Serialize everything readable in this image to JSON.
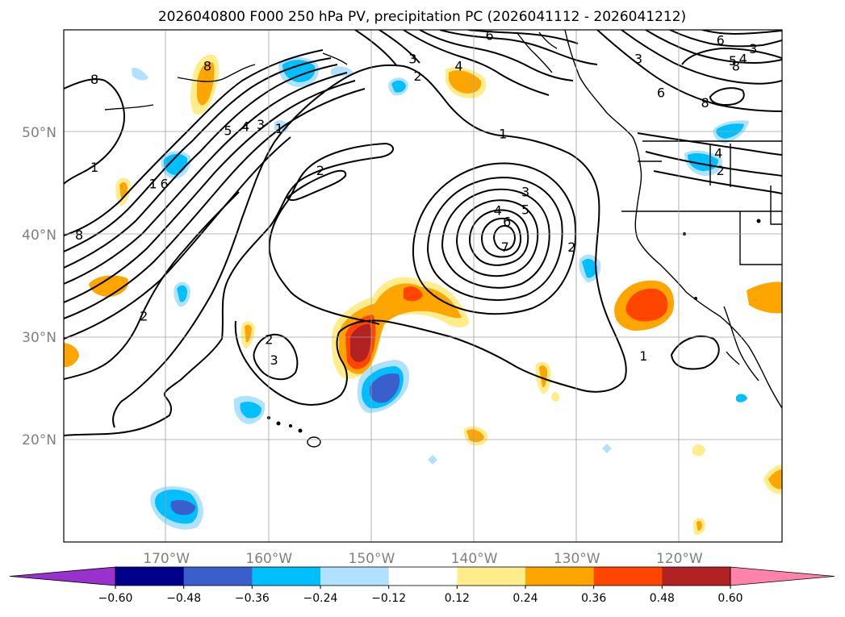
{
  "title": "2026040800 F000 250 hPa PV, precipitation PC (2026041112 - 2026041212)",
  "map": {
    "lat_ticks": [
      {
        "lat": 50,
        "label": "50°N"
      },
      {
        "lat": 40,
        "label": "40°N"
      },
      {
        "lat": 30,
        "label": "30°N"
      },
      {
        "lat": 20,
        "label": "20°N"
      }
    ],
    "lon_ticks": [
      {
        "lon": -170,
        "label": "170°W"
      },
      {
        "lon": -160,
        "label": "160°W"
      },
      {
        "lon": -150,
        "label": "150°W"
      },
      {
        "lon": -140,
        "label": "140°W"
      },
      {
        "lon": -130,
        "label": "130°W"
      },
      {
        "lon": -120,
        "label": "120°W"
      }
    ],
    "contour_labels": [
      {
        "text": "8",
        "lon": -166,
        "lat": 56.5
      },
      {
        "text": "8",
        "lon": -177,
        "lat": 55.2
      },
      {
        "text": "1",
        "lon": -177,
        "lat": 46.6
      },
      {
        "text": "8",
        "lon": -178.5,
        "lat": 40.0
      },
      {
        "text": "5",
        "lon": -164,
        "lat": 50.2
      },
      {
        "text": "4",
        "lon": -162.3,
        "lat": 50.6
      },
      {
        "text": "3",
        "lon": -160.8,
        "lat": 50.8
      },
      {
        "text": "1",
        "lon": -159,
        "lat": 50.4
      },
      {
        "text": "1",
        "lon": -171.3,
        "lat": 45.0
      },
      {
        "text": "6",
        "lon": -170.2,
        "lat": 45.0
      },
      {
        "text": "2",
        "lon": -172.2,
        "lat": 32.1
      },
      {
        "text": "2",
        "lon": -155,
        "lat": 46.3
      },
      {
        "text": "2",
        "lon": -160,
        "lat": 29.8
      },
      {
        "text": "3",
        "lon": -159.5,
        "lat": 27.8
      },
      {
        "text": "3",
        "lon": -146,
        "lat": 57.2
      },
      {
        "text": "2",
        "lon": -145.5,
        "lat": 55.5
      },
      {
        "text": "4",
        "lon": -141.5,
        "lat": 56.5
      },
      {
        "text": "6",
        "lon": -138.5,
        "lat": 59.5
      },
      {
        "text": "1",
        "lon": -137.2,
        "lat": 49.9
      },
      {
        "text": "3",
        "lon": -135,
        "lat": 44.2
      },
      {
        "text": "4",
        "lon": -137.7,
        "lat": 42.4
      },
      {
        "text": "5",
        "lon": -135,
        "lat": 42.5
      },
      {
        "text": "6",
        "lon": -136.8,
        "lat": 41.3
      },
      {
        "text": "7",
        "lon": -137,
        "lat": 38.8
      },
      {
        "text": "2",
        "lon": -130.5,
        "lat": 38.8
      },
      {
        "text": "1",
        "lon": -123.5,
        "lat": 28.2
      },
      {
        "text": "3",
        "lon": -124,
        "lat": 57.2
      },
      {
        "text": "6",
        "lon": -116,
        "lat": 59.0
      },
      {
        "text": "5",
        "lon": -114.8,
        "lat": 57.0
      },
      {
        "text": "4",
        "lon": -113.8,
        "lat": 57.2
      },
      {
        "text": "3",
        "lon": -112.8,
        "lat": 58.2
      },
      {
        "text": "8",
        "lon": -114.5,
        "lat": 56.5
      },
      {
        "text": "6",
        "lon": -121.8,
        "lat": 53.9
      },
      {
        "text": "8",
        "lon": -117.5,
        "lat": 52.9
      },
      {
        "text": "4",
        "lon": -116.2,
        "lat": 48.0
      },
      {
        "text": "2",
        "lon": -116,
        "lat": 46.3
      }
    ]
  },
  "colorbar": {
    "ticks": [
      "−0.60",
      "−0.48",
      "−0.36",
      "−0.24",
      "−0.12",
      "0.12",
      "0.24",
      "0.36",
      "0.48",
      "0.60"
    ],
    "colors": {
      "under": "#9932cc",
      "bins": [
        "#00008b",
        "#3a5fcd",
        "#00bfff",
        "#b0e2ff",
        "#ffffff",
        "#ffec8b",
        "#ffa500",
        "#ff4500",
        "#b22222"
      ],
      "over": "#ff82ab"
    }
  }
}
